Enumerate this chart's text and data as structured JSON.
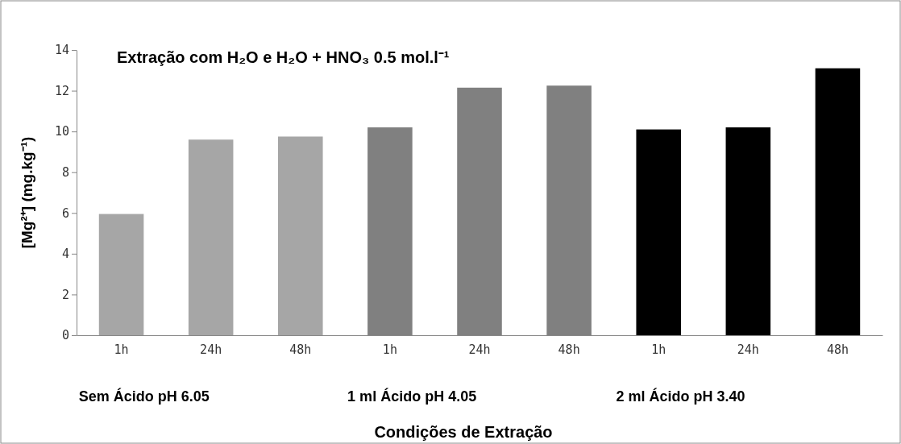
{
  "chart_data": {
    "type": "bar",
    "title": "Extração com H₂O e H₂O + HNO₃ 0.5 mol.l⁻¹",
    "xlabel": "Condições de Extração",
    "ylabel": "[Mg²⁺] (mg.kg⁻¹)",
    "categories": [
      "1h",
      "24h",
      "48h",
      "1h",
      "24h",
      "48h",
      "1h",
      "24h",
      "48h"
    ],
    "values": [
      5.95,
      9.6,
      9.75,
      10.2,
      12.15,
      12.25,
      10.1,
      10.2,
      13.1
    ],
    "colors": [
      "#a6a6a6",
      "#a6a6a6",
      "#a6a6a6",
      "#808080",
      "#808080",
      "#808080",
      "#000000",
      "#000000",
      "#000000"
    ],
    "annotations": [
      "Sem Ácido pH 6.05",
      "1 ml Ácido  pH 4.05",
      "2 ml Ácido pH 3.40"
    ],
    "ylim": [
      0,
      14
    ],
    "yticks": [
      0,
      2,
      4,
      6,
      8,
      10,
      12,
      14
    ],
    "grid": false
  }
}
